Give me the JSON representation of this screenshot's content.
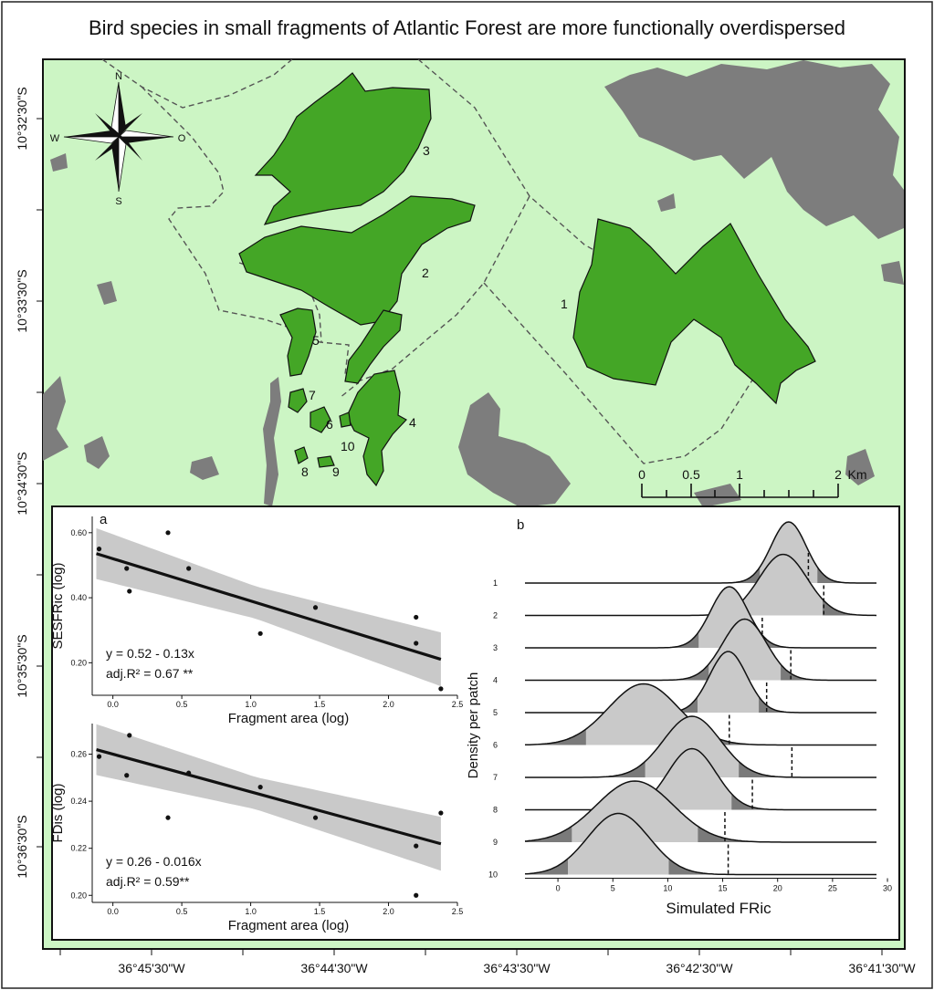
{
  "title": "Bird species in small fragments of Atlantic Forest are more functionally overdispersed",
  "colors": {
    "background": "#ccf5c4",
    "fragment": "#44a626",
    "urban": "#7d7d7d",
    "band": "#c9c9c9",
    "band_dark": "#7a7a7a"
  },
  "map": {
    "lat_labels": [
      "10°32'30\"S",
      "10°33'30\"S",
      "10°34'30\"S",
      "10°35'30\"S",
      "10°36'30\"S"
    ],
    "lon_labels": [
      "36°45'30\"W",
      "36°44'30\"W",
      "36°43'30\"W",
      "36°42'30\"W",
      "36°41'30\"W"
    ],
    "compass": {
      "n": "N",
      "s": "S",
      "w": "W",
      "e": "O",
      "icon": "compass-rose-icon"
    },
    "fragments": [
      "1",
      "2",
      "3",
      "4",
      "5",
      "6",
      "7",
      "8",
      "9",
      "10"
    ],
    "scale_bar": {
      "ticks": [
        "0",
        "0.5",
        "1",
        "2"
      ],
      "unit": "Km"
    }
  },
  "panel_a": {
    "letter": "a"
  },
  "panel_b": {
    "letter": "b"
  },
  "chart_data": [
    {
      "type": "scatter",
      "panel": "a-top",
      "xlabel": "Fragment area (log)",
      "ylabel": "SESFRic (log)",
      "xlim": [
        -0.15,
        2.5
      ],
      "ylim": [
        0.1,
        0.65
      ],
      "xticks": [
        "0.0",
        "0.5",
        "1.0",
        "1.5",
        "2.0",
        "2.5"
      ],
      "yticks": [
        "0.20",
        "0.40",
        "0.60"
      ],
      "points": [
        {
          "x": -0.1,
          "y": 0.55
        },
        {
          "x": 0.1,
          "y": 0.49
        },
        {
          "x": 0.12,
          "y": 0.42
        },
        {
          "x": 0.4,
          "y": 0.6
        },
        {
          "x": 0.55,
          "y": 0.49
        },
        {
          "x": 1.07,
          "y": 0.29
        },
        {
          "x": 1.47,
          "y": 0.37
        },
        {
          "x": 2.2,
          "y": 0.34
        },
        {
          "x": 2.2,
          "y": 0.26
        },
        {
          "x": 2.38,
          "y": 0.12
        }
      ],
      "fit": {
        "intercept": 0.52,
        "slope": -0.13
      },
      "equation": "y = 0.52 - 0.13x",
      "r2": "adj.R² = 0.67 **"
    },
    {
      "type": "scatter",
      "panel": "a-bottom",
      "xlabel": "Fragment area (log)",
      "ylabel": "FDis (log)",
      "xlim": [
        -0.15,
        2.5
      ],
      "ylim": [
        0.197,
        0.273
      ],
      "xticks": [
        "0.0",
        "0.5",
        "1.0",
        "1.5",
        "2.0",
        "2.5"
      ],
      "yticks": [
        "0.20",
        "0.22",
        "0.24",
        "0.26"
      ],
      "points": [
        {
          "x": -0.1,
          "y": 0.259
        },
        {
          "x": 0.1,
          "y": 0.251
        },
        {
          "x": 0.12,
          "y": 0.268
        },
        {
          "x": 0.4,
          "y": 0.233
        },
        {
          "x": 0.55,
          "y": 0.252
        },
        {
          "x": 1.07,
          "y": 0.246
        },
        {
          "x": 1.47,
          "y": 0.233
        },
        {
          "x": 2.2,
          "y": 0.221
        },
        {
          "x": 2.2,
          "y": 0.2
        },
        {
          "x": 2.38,
          "y": 0.235
        }
      ],
      "fit": {
        "intercept": 0.26,
        "slope": -0.016
      },
      "equation": "y = 0.26 - 0.016x",
      "r2": "adj.R² = 0.59**"
    },
    {
      "type": "area",
      "panel": "b",
      "xlabel": "Simulated FRic",
      "ylabel": "Density per patch",
      "xlim": [
        -3,
        29
      ],
      "xticks": [
        "0",
        "5",
        "10",
        "15",
        "20",
        "25",
        "30"
      ],
      "categories": [
        "1",
        "2",
        "3",
        "4",
        "5",
        "6",
        "7",
        "8",
        "9",
        "10"
      ],
      "series": [
        {
          "name": "1",
          "mean": 21.0,
          "sd": 1.6,
          "observed": 22.8
        },
        {
          "name": "2",
          "mean": 20.5,
          "sd": 2.2,
          "observed": 24.2
        },
        {
          "name": "3",
          "mean": 15.6,
          "sd": 1.7,
          "observed": 18.6
        },
        {
          "name": "4",
          "mean": 17.0,
          "sd": 2.0,
          "observed": 21.2
        },
        {
          "name": "5",
          "mean": 15.5,
          "sd": 1.7,
          "observed": 19.0
        },
        {
          "name": "6",
          "mean": 7.8,
          "sd": 3.2,
          "observed": 15.6
        },
        {
          "name": "7",
          "mean": 12.2,
          "sd": 2.6,
          "observed": 21.3
        },
        {
          "name": "8",
          "mean": 12.2,
          "sd": 2.2,
          "observed": 17.7
        },
        {
          "name": "9",
          "mean": 7.0,
          "sd": 3.5,
          "observed": 15.2
        },
        {
          "name": "10",
          "mean": 5.5,
          "sd": 2.8,
          "observed": 15.5
        }
      ]
    }
  ]
}
